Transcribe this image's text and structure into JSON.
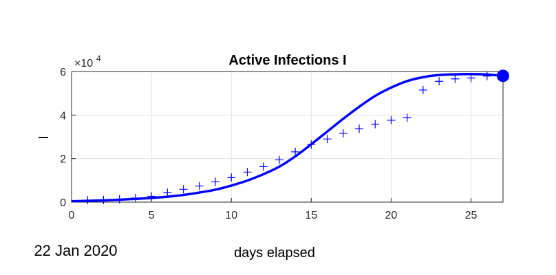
{
  "chart_data": {
    "type": "line",
    "title": "Active Infections  I",
    "ylabel": "I",
    "xlabel": "days elapsed",
    "date_label": "22 Jan 2020",
    "y_exponent_base": "×10",
    "y_exponent_power": "4",
    "xlim": [
      0,
      27
    ],
    "ylim": [
      0,
      60000
    ],
    "x_ticks": [
      0,
      5,
      10,
      15,
      20,
      25
    ],
    "y_ticks": [
      0,
      20000,
      40000,
      60000
    ],
    "y_tick_labels": [
      "0",
      "2",
      "4",
      "6"
    ],
    "grid": true,
    "color": "#0000ff",
    "series": [
      {
        "type": "scatter",
        "marker": "+",
        "x": [
          1,
          2,
          3,
          4,
          5,
          6,
          7,
          8,
          9,
          10,
          11,
          12,
          13,
          14,
          15,
          16,
          17,
          18,
          19,
          20,
          21,
          22,
          23,
          24,
          25,
          26
        ],
        "y": [
          900,
          1000,
          1300,
          1900,
          2700,
          4300,
          5900,
          7400,
          9300,
          11300,
          13800,
          16300,
          19400,
          23100,
          26500,
          29000,
          31600,
          33700,
          35800,
          37600,
          38800,
          51500,
          55500,
          56600,
          57000,
          57900
        ]
      },
      {
        "type": "line",
        "x": [
          0,
          1,
          2,
          3,
          4,
          5,
          6,
          7,
          8,
          9,
          10,
          11,
          12,
          13,
          14,
          15,
          16,
          17,
          18,
          19,
          20,
          21,
          22,
          23,
          24,
          25,
          26,
          27
        ],
        "y": [
          400,
          600,
          800,
          1100,
          1500,
          1900,
          2500,
          3300,
          4400,
          5700,
          7600,
          9900,
          12800,
          16300,
          21000,
          26600,
          32400,
          38300,
          43800,
          48800,
          52600,
          55600,
          57400,
          58400,
          58700,
          58800,
          58600,
          58000
        ]
      }
    ],
    "endpoint": {
      "x": 27,
      "y": 58000
    }
  }
}
